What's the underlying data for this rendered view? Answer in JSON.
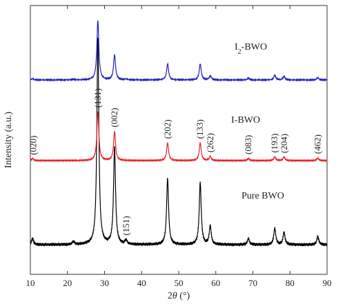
{
  "chart_data": {
    "type": "line",
    "title": "",
    "xlabel": "2θ (°)",
    "xlabel_parts": {
      "pre": "2",
      "theta": "θ",
      "post": " (°)"
    },
    "ylabel": "Intensity (a.u.)",
    "xlim": [
      10,
      90
    ],
    "xticks": [
      "10",
      "20",
      "30",
      "40",
      "50",
      "60",
      "70",
      "80",
      "90"
    ],
    "grid": false,
    "legend": "none",
    "peak_width": 0.32,
    "series": [
      {
        "name": "Pure BWO",
        "label_parts": {
          "pre": "Pure BWO",
          "sub": "",
          "post": ""
        },
        "color": "#000000",
        "peaks": [
          {
            "x": 10.6,
            "h": 0.03
          },
          {
            "x": 21.6,
            "h": 0.015
          },
          {
            "x": 28.2,
            "h": 1.0
          },
          {
            "x": 32.7,
            "h": 0.47
          },
          {
            "x": 35.8,
            "h": 0.02
          },
          {
            "x": 47.0,
            "h": 0.32
          },
          {
            "x": 55.8,
            "h": 0.3
          },
          {
            "x": 58.5,
            "h": 0.09
          },
          {
            "x": 68.8,
            "h": 0.03
          },
          {
            "x": 75.9,
            "h": 0.08
          },
          {
            "x": 78.4,
            "h": 0.06
          },
          {
            "x": 87.5,
            "h": 0.04
          }
        ]
      },
      {
        "name": "I-BWO",
        "label_parts": {
          "pre": "I-BWO",
          "sub": "",
          "post": ""
        },
        "color": "#e8202a",
        "peaks": [
          {
            "x": 10.6,
            "h": 0.04
          },
          {
            "x": 28.2,
            "h": 0.94
          },
          {
            "x": 32.7,
            "h": 0.56
          },
          {
            "x": 47.0,
            "h": 0.34
          },
          {
            "x": 55.8,
            "h": 0.34
          },
          {
            "x": 58.5,
            "h": 0.08
          },
          {
            "x": 68.8,
            "h": 0.04
          },
          {
            "x": 75.9,
            "h": 0.07
          },
          {
            "x": 78.4,
            "h": 0.07
          },
          {
            "x": 87.5,
            "h": 0.05
          }
        ]
      },
      {
        "name": "I2-BWO",
        "label_parts": {
          "pre": "I",
          "sub": "2",
          "post": "-BWO"
        },
        "color": "#1f1fbf",
        "peaks": [
          {
            "x": 10.6,
            "h": 0.02
          },
          {
            "x": 21.6,
            "h": 0.01
          },
          {
            "x": 28.2,
            "h": 1.0
          },
          {
            "x": 32.7,
            "h": 0.42
          },
          {
            "x": 35.8,
            "h": 0.015
          },
          {
            "x": 47.0,
            "h": 0.27
          },
          {
            "x": 55.8,
            "h": 0.27
          },
          {
            "x": 58.5,
            "h": 0.07
          },
          {
            "x": 68.8,
            "h": 0.03
          },
          {
            "x": 75.9,
            "h": 0.08
          },
          {
            "x": 78.4,
            "h": 0.06
          },
          {
            "x": 87.5,
            "h": 0.04
          }
        ]
      }
    ],
    "annotations": [
      {
        "text": "(020)",
        "x": 10.8,
        "series": "I-BWO",
        "rotate": true
      },
      {
        "text": "(131)",
        "x": 28.2,
        "series": "I-BWO",
        "rotate": true
      },
      {
        "text": "(002)",
        "x": 32.7,
        "series": "I-BWO",
        "rotate": true
      },
      {
        "text": "(202)",
        "x": 47.0,
        "series": "I-BWO",
        "rotate": true
      },
      {
        "text": "(133)",
        "x": 55.8,
        "series": "I-BWO",
        "rotate": true
      },
      {
        "text": "(262)",
        "x": 58.6,
        "series": "I-BWO",
        "rotate": true
      },
      {
        "text": "(083)",
        "x": 68.8,
        "series": "I-BWO",
        "rotate": true
      },
      {
        "text": "(193)",
        "x": 75.9,
        "series": "I-BWO",
        "rotate": true
      },
      {
        "text": "(204)",
        "x": 78.5,
        "series": "I-BWO",
        "rotate": true
      },
      {
        "text": "(462)",
        "x": 87.5,
        "series": "I-BWO",
        "rotate": true
      },
      {
        "text": "(151)",
        "x": 35.9,
        "series": "Pure BWO",
        "rotate": true
      }
    ]
  }
}
